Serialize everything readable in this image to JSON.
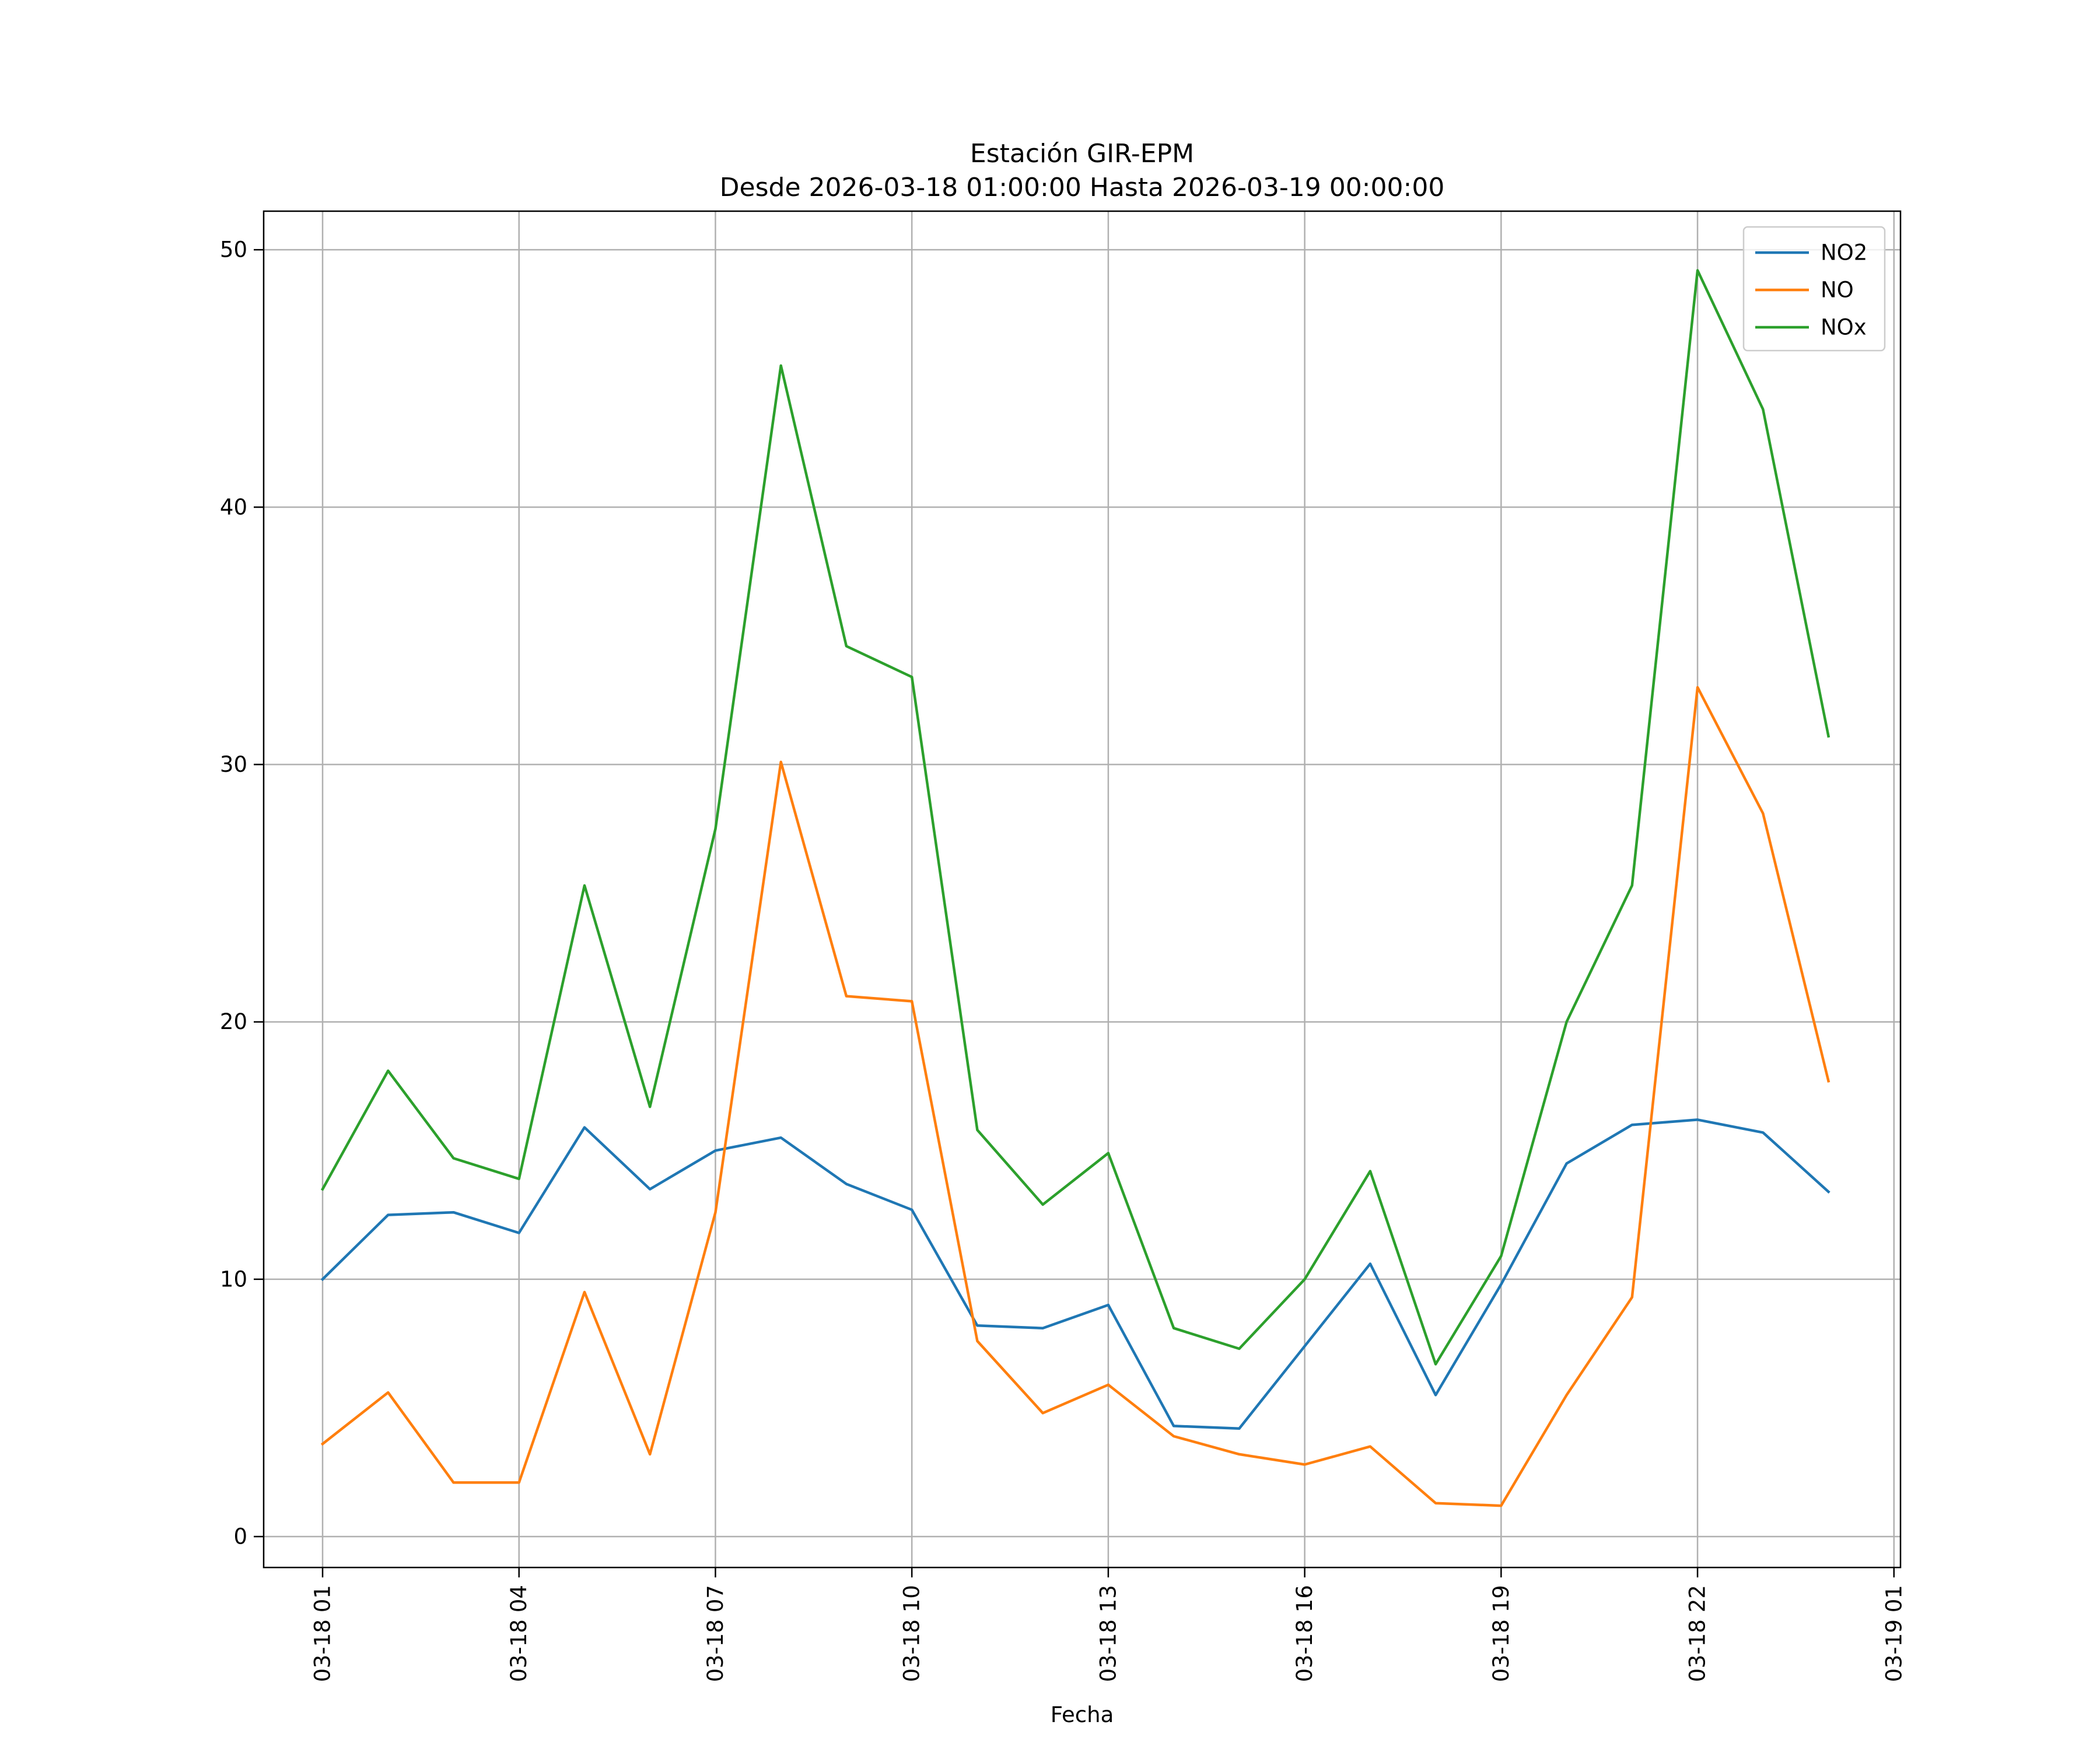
{
  "chart_data": {
    "type": "line",
    "title": "Estación GIR-EPM",
    "subtitle": "Desde 2026-03-18 01:00:00 Hasta 2026-03-19 00:00:00",
    "xlabel": "Fecha",
    "ylabel": "",
    "x": [
      "03-18 01",
      "03-18 02",
      "03-18 03",
      "03-18 04",
      "03-18 05",
      "03-18 06",
      "03-18 07",
      "03-18 08",
      "03-18 09",
      "03-18 10",
      "03-18 11",
      "03-18 12",
      "03-18 13",
      "03-18 14",
      "03-18 15",
      "03-18 16",
      "03-18 17",
      "03-18 18",
      "03-18 19",
      "03-18 20",
      "03-18 21",
      "03-18 22",
      "03-18 23",
      "03-19 00"
    ],
    "x_ticks": [
      "03-18 01",
      "03-18 04",
      "03-18 07",
      "03-18 10",
      "03-18 13",
      "03-18 16",
      "03-18 19",
      "03-18 22",
      "03-19 01"
    ],
    "x_range": [
      "03-18 00:06",
      "03-19 01:06"
    ],
    "y_ticks": [
      0,
      10,
      20,
      30,
      40,
      50
    ],
    "ylim": [
      -1.2,
      51.5
    ],
    "grid": true,
    "legend_position": "top-right",
    "series": [
      {
        "name": "NO2",
        "color": "#1f77b4",
        "values": [
          10.0,
          12.5,
          12.6,
          11.8,
          15.9,
          13.5,
          15.0,
          15.5,
          13.7,
          12.7,
          8.2,
          8.1,
          9.0,
          4.3,
          4.2,
          7.4,
          10.6,
          5.5,
          9.8,
          14.5,
          16.0,
          16.2,
          15.7,
          13.4
        ]
      },
      {
        "name": "NO",
        "color": "#ff7f0e",
        "values": [
          3.6,
          5.6,
          2.1,
          2.1,
          9.5,
          3.2,
          12.6,
          30.1,
          21.0,
          20.8,
          7.6,
          4.8,
          5.9,
          3.9,
          3.2,
          2.8,
          3.5,
          1.3,
          1.2,
          5.5,
          9.3,
          33.0,
          28.1,
          17.7
        ]
      },
      {
        "name": "NOx",
        "color": "#2ca02c",
        "values": [
          13.5,
          18.1,
          14.7,
          13.9,
          25.3,
          16.7,
          27.5,
          45.5,
          34.6,
          33.4,
          15.8,
          12.9,
          14.9,
          8.1,
          7.3,
          10.0,
          14.2,
          6.7,
          10.9,
          20.0,
          25.3,
          49.2,
          43.8,
          31.1
        ]
      }
    ]
  }
}
